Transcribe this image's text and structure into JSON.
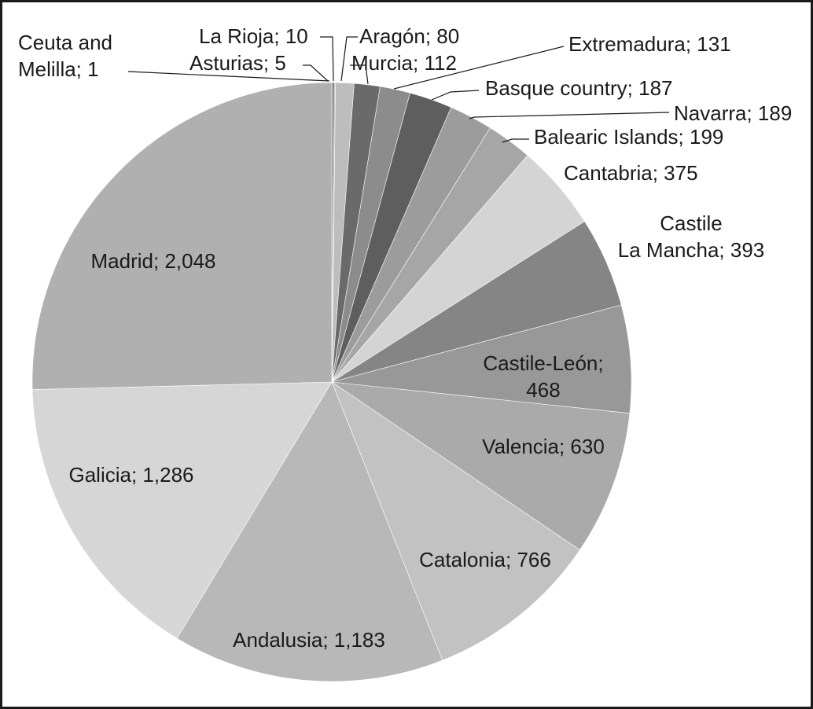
{
  "chart_data": {
    "type": "pie",
    "title": "",
    "categories": [
      "Ceuta and Melilla",
      "La Rioja",
      "Asturias",
      "Aragón",
      "Murcia",
      "Extremadura",
      "Basque country",
      "Navarra",
      "Balearic Islands",
      "Cantabria",
      "Castile La Mancha",
      "Castile-León",
      "Valencia",
      "Catalonia",
      "Andalusia",
      "Galicia",
      "Madrid"
    ],
    "values": [
      1,
      10,
      5,
      80,
      112,
      131,
      187,
      189,
      199,
      375,
      393,
      468,
      630,
      766,
      1183,
      1286,
      2048
    ],
    "slices": [
      {
        "name": "Ceuta and Melilla",
        "value": 1,
        "label_lines": [
          "Ceuta and",
          "Melilla; 1"
        ],
        "color": "#8a8a8a"
      },
      {
        "name": "La Rioja",
        "value": 10,
        "label_lines": [
          "La Rioja; 10"
        ],
        "color": "#7a7a7a"
      },
      {
        "name": "Asturias",
        "value": 5,
        "label_lines": [
          "Asturias; 5"
        ],
        "color": "#a8a8a8"
      },
      {
        "name": "Aragón",
        "value": 80,
        "label_lines": [
          "Aragón; 80"
        ],
        "color": "#bdbdbd"
      },
      {
        "name": "Murcia",
        "value": 112,
        "label_lines": [
          "Murcia; 112"
        ],
        "color": "#6a6a6a"
      },
      {
        "name": "Extremadura",
        "value": 131,
        "label_lines": [
          "Extremadura; 131"
        ],
        "color": "#8c8c8c"
      },
      {
        "name": "Basque country",
        "value": 187,
        "label_lines": [
          "Basque country; 187"
        ],
        "color": "#5e5e5e"
      },
      {
        "name": "Navarra",
        "value": 189,
        "label_lines": [
          "Navarra; 189"
        ],
        "color": "#9c9c9c"
      },
      {
        "name": "Balearic Islands",
        "value": 199,
        "label_lines": [
          "Balearic Islands; 199"
        ],
        "color": "#a6a6a6"
      },
      {
        "name": "Cantabria",
        "value": 375,
        "label_lines": [
          "Cantabria; 375"
        ],
        "color": "#d4d4d4"
      },
      {
        "name": "Castile La Mancha",
        "value": 393,
        "label_lines": [
          "Castile",
          "La Mancha; 393"
        ],
        "color": "#858585"
      },
      {
        "name": "Castile-León",
        "value": 468,
        "label_lines": [
          "Castile-León;",
          "468"
        ],
        "color": "#989898"
      },
      {
        "name": "Valencia",
        "value": 630,
        "label_lines": [
          "Valencia; 630"
        ],
        "color": "#aaaaaa"
      },
      {
        "name": "Catalonia",
        "value": 766,
        "label_lines": [
          "Catalonia; 766"
        ],
        "color": "#c2c2c2"
      },
      {
        "name": "Andalusia",
        "value": 1183,
        "label_lines": [
          "Andalusia; 1,183"
        ],
        "color": "#b8b8b8"
      },
      {
        "name": "Galicia",
        "value": 1286,
        "label_lines": [
          "Galicia; 1,286"
        ],
        "color": "#d6d6d6"
      },
      {
        "name": "Madrid",
        "value": 2048,
        "label_lines": [
          "Madrid; 2,048"
        ],
        "color": "#b0b0b0"
      }
    ],
    "start_angle_deg": 0,
    "direction": "clockwise",
    "legend": "none"
  }
}
